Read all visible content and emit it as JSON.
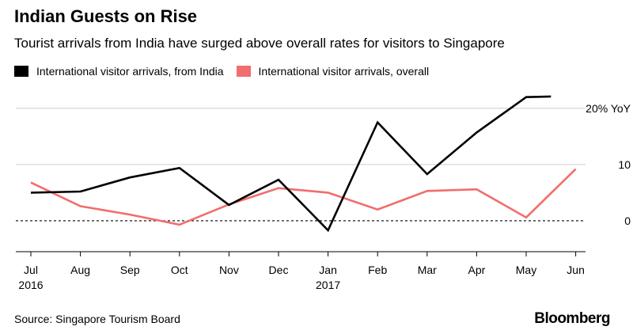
{
  "title": "Indian Guests on Rise",
  "subtitle": "Tourist arrivals from India have surged above overall rates for visitors to Singapore",
  "source": "Source: Singapore Tourism Board",
  "brand": "Bloomberg",
  "colors": {
    "india": "#000000",
    "overall": "#f26d6d",
    "grid": "#cccccc"
  },
  "chart_data": {
    "type": "line",
    "x": [
      "Jul 2016",
      "Aug 2016",
      "Sep 2016",
      "Oct 2016",
      "Nov 2016",
      "Dec 2016",
      "Jan 2017",
      "Feb 2017",
      "Mar 2017",
      "Apr 2017",
      "May 2017",
      "Jun 2017"
    ],
    "tick_labels": [
      {
        "label": "Jul",
        "sub": "2016"
      },
      {
        "label": "Aug",
        "sub": ""
      },
      {
        "label": "Sep",
        "sub": ""
      },
      {
        "label": "Oct",
        "sub": ""
      },
      {
        "label": "Nov",
        "sub": ""
      },
      {
        "label": "Dec",
        "sub": ""
      },
      {
        "label": "Jan",
        "sub": "2017"
      },
      {
        "label": "Feb",
        "sub": ""
      },
      {
        "label": "Mar",
        "sub": ""
      },
      {
        "label": "Apr",
        "sub": ""
      },
      {
        "label": "May",
        "sub": ""
      },
      {
        "label": "Jun",
        "sub": ""
      }
    ],
    "series": [
      {
        "name": "International visitor arrivals, from India",
        "color": "#000000",
        "x_index": [
          0,
          1,
          2,
          3,
          4,
          5,
          6,
          7,
          8,
          9,
          10,
          10.5
        ],
        "values": [
          5.0,
          5.2,
          7.7,
          9.4,
          2.8,
          7.3,
          -1.7,
          17.5,
          8.3,
          15.7,
          22.0,
          22.1
        ]
      },
      {
        "name": "International visitor arrivals, overall",
        "color": "#f26d6d",
        "x_index": [
          0,
          1,
          2,
          3,
          4,
          5,
          6,
          7,
          8,
          9,
          10,
          11
        ],
        "values": [
          6.8,
          2.6,
          1.1,
          -0.7,
          2.9,
          5.8,
          5.0,
          2.0,
          5.3,
          5.6,
          0.6,
          9.2
        ]
      }
    ],
    "y_ticks": [
      {
        "value": 20,
        "label": "20% YoY"
      },
      {
        "value": 10,
        "label": "10"
      },
      {
        "value": 0,
        "label": "0"
      }
    ],
    "ylim": [
      -5.5,
      23.5
    ],
    "grid": true,
    "zero_line": "dashed",
    "legend": "top-left"
  }
}
